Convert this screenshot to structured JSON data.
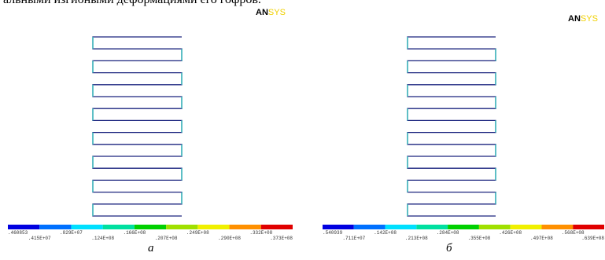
{
  "text_top": "альными изгибными деформациями его гофров.",
  "panels": [
    {
      "logo": {
        "an": "AN",
        "sys": "SYS"
      },
      "legend": [
        ".460853",
        ".415E+07",
        ".829E+07",
        ".124E+08",
        ".166E+08",
        ".207E+08",
        ".249E+08",
        ".290E+08",
        ".332E+08",
        ".373E+08"
      ],
      "caption": "а"
    },
    {
      "logo": {
        "an": "AN",
        "sys": "SYS"
      },
      "legend": [
        ".540939",
        ".711E+07",
        ".142E+08",
        ".213E+08",
        ".284E+08",
        ".355E+08",
        ".426E+08",
        ".497E+08",
        ".568E+08",
        ".639E+08"
      ],
      "caption": "б"
    }
  ]
}
